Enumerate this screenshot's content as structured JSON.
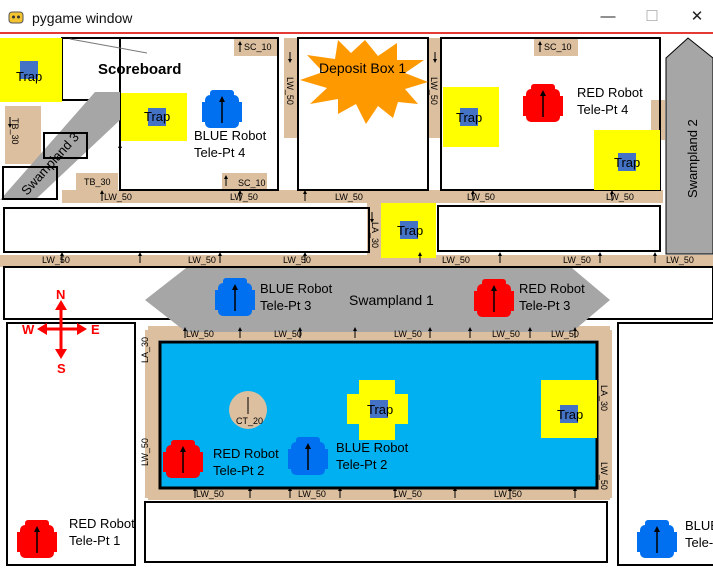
{
  "window": {
    "title": "pygame window",
    "minimize_glyph": "—",
    "maximize_glyph": "☐",
    "close_glyph": "✕"
  },
  "arena": {
    "scoreboard": "Scoreboard",
    "deposit_box": "Deposit Box 1",
    "trap_label": "Trap",
    "compass": {
      "n": "N",
      "s": "S",
      "e": "E",
      "w": "W"
    },
    "swamplands": {
      "s1": "Swampland 1",
      "s2": "Swampland 2",
      "s3": "Swampland 3"
    },
    "robots": {
      "blue4": [
        "BLUE Robot",
        "Tele-Pt 4"
      ],
      "red4": [
        "RED Robot",
        "Tele-Pt 4"
      ],
      "blue3": [
        "BLUE Robot",
        "Tele-Pt 3"
      ],
      "red3": [
        "RED Robot",
        "Tele-Pt 3"
      ],
      "red2": [
        "RED Robot",
        "Tele-Pt 2"
      ],
      "blue2": [
        "BLUE Robot",
        "Tele-Pt 2"
      ],
      "red1": [
        "RED Robot",
        "Tele-Pt 1"
      ],
      "blue_edge": [
        "BLUE",
        "Tele-"
      ]
    },
    "labels": {
      "lw50": "LW_50",
      "la30": "LA_30",
      "sc10": "SC_10",
      "tb30": "TB_30",
      "ct20": "CT_20"
    }
  },
  "colors": {
    "wall": "#dcbf9f",
    "trap": "#ffff00",
    "trap_inner": "#4472c4",
    "swamp": "#a6a6a6",
    "water": "#00b0f0",
    "red_robot": "#ff0000",
    "blue_robot": "#0070f0",
    "deposit": "#ff9900",
    "compass": "#ff0000"
  }
}
